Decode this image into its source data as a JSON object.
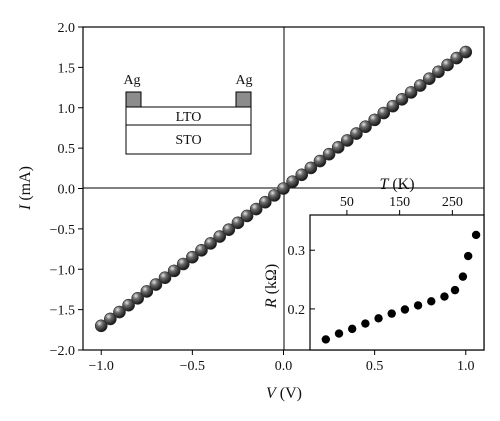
{
  "chart_data": [
    {
      "type": "scatter",
      "title": "",
      "xlabel_var": "V",
      "xlabel_unit": " (V)",
      "ylabel_var": "I",
      "ylabel_unit": " (mA)",
      "xlim": [
        -1.1,
        1.1
      ],
      "ylim": [
        -2.0,
        2.0
      ],
      "xticks": [
        -1.0,
        -0.5,
        0.0,
        0.5,
        1.0
      ],
      "xtick_labels": [
        "−1.0",
        "−0.5",
        "0.0",
        "0.5",
        "1.0"
      ],
      "yticks": [
        2.0,
        1.5,
        1.0,
        0.5,
        0.0,
        -0.5,
        -1.0,
        -1.5,
        -2.0
      ],
      "ytick_labels": [
        "2.0",
        "1.5",
        "1.0",
        "0.5",
        "0.0",
        "−0.5",
        "−1.0",
        "−1.5",
        "−2.0"
      ],
      "grid": false,
      "marker_color": "#2a2a2a",
      "series": [
        {
          "x": [
            -1.0,
            -0.95,
            -0.9,
            -0.85,
            -0.8,
            -0.75,
            -0.7,
            -0.65,
            -0.6,
            -0.55,
            -0.5,
            -0.45,
            -0.4,
            -0.35,
            -0.3,
            -0.25,
            -0.2,
            -0.15,
            -0.1,
            -0.05,
            0.0,
            0.05,
            0.1,
            0.15,
            0.2,
            0.25,
            0.3,
            0.35,
            0.4,
            0.45,
            0.5,
            0.55,
            0.6,
            0.65,
            0.7,
            0.75,
            0.8,
            0.85,
            0.9,
            0.95,
            1.0
          ],
          "y": [
            -1.7,
            -1.615,
            -1.53,
            -1.445,
            -1.36,
            -1.275,
            -1.19,
            -1.105,
            -1.02,
            -0.935,
            -0.85,
            -0.765,
            -0.68,
            -0.595,
            -0.51,
            -0.425,
            -0.34,
            -0.255,
            -0.17,
            -0.085,
            0.0,
            0.085,
            0.17,
            0.255,
            0.34,
            0.425,
            0.51,
            0.595,
            0.68,
            0.765,
            0.85,
            0.935,
            1.02,
            1.105,
            1.19,
            1.275,
            1.36,
            1.445,
            1.53,
            1.615,
            1.69
          ]
        }
      ]
    },
    {
      "type": "scatter",
      "title": "",
      "xlabel_var": "T",
      "xlabel_unit": " (K)",
      "ylabel_var": "R",
      "ylabel_unit": " (kΩ)",
      "xlim": [
        -20,
        310
      ],
      "ylim": [
        0.13,
        0.36
      ],
      "xticks": [
        50,
        150,
        250
      ],
      "xtick_labels": [
        "50",
        "150",
        "250"
      ],
      "yticks": [
        0.3,
        0.2
      ],
      "ytick_labels": [
        "0.3",
        "0.2"
      ],
      "grid": false,
      "marker_color": "#000000",
      "series": [
        {
          "x": [
            10,
            35,
            60,
            85,
            110,
            135,
            160,
            185,
            210,
            235,
            255,
            270,
            280,
            295
          ],
          "y": [
            0.148,
            0.158,
            0.166,
            0.175,
            0.184,
            0.192,
            0.199,
            0.206,
            0.213,
            0.221,
            0.232,
            0.255,
            0.29,
            0.326
          ]
        }
      ]
    }
  ],
  "schematic": {
    "electrode_left": "Ag",
    "electrode_right": "Ag",
    "film_layer": "LTO",
    "substrate_layer": "STO"
  }
}
